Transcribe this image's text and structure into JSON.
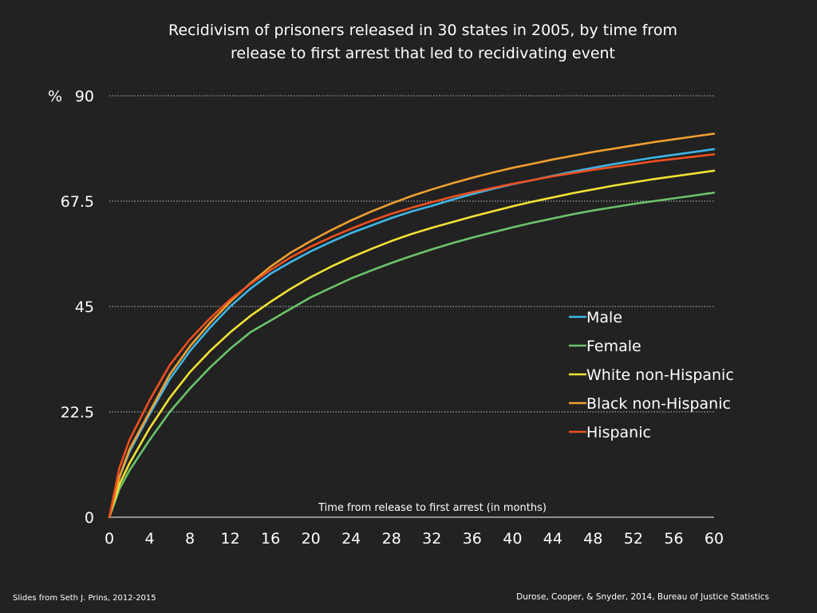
{
  "slide": {
    "title_line1": "Recidivism of prisoners released in 30 states in 2005, by time from",
    "title_line2": "release to first arrest that led to recidivating event",
    "footer_left": "Slides from Seth J. Prins, 2012-2015",
    "footer_right": "Durose, Cooper, & Snyder,  2014, Bureau of Justice Statistics"
  },
  "chart_data": {
    "type": "line",
    "title": "Recidivism of prisoners released in 30 states in 2005, by time from release to first arrest that led to recidivating event",
    "xlabel": "Time from release to first arrest (in months)",
    "ylabel": "%",
    "xlim": [
      0,
      60
    ],
    "ylim": [
      0,
      90
    ],
    "x_ticks": [
      0,
      4,
      8,
      12,
      16,
      20,
      24,
      28,
      32,
      36,
      40,
      44,
      48,
      52,
      56,
      60
    ],
    "y_ticks": [
      0,
      22.5,
      45,
      67.5,
      90
    ],
    "y_tick_labels": [
      "0",
      "22.5",
      "45",
      "67.5",
      "90"
    ],
    "y_unit_label": "%",
    "grid": "horizontal dotted",
    "legend_position": "right, middle",
    "x": [
      0,
      1,
      2,
      4,
      6,
      8,
      10,
      12,
      14,
      16,
      18,
      20,
      22,
      24,
      26,
      28,
      30,
      32,
      34,
      36,
      38,
      40,
      42,
      44,
      46,
      48,
      50,
      52,
      54,
      56,
      58,
      60
    ],
    "series": [
      {
        "name": "Male",
        "color": "#3fb5e6",
        "values": [
          0,
          8.5,
          14,
          22,
          29.5,
          35.5,
          40.5,
          45,
          48.8,
          52,
          54.5,
          56.8,
          58.8,
          60.7,
          62.3,
          63.9,
          65.3,
          66.5,
          67.8,
          69,
          70.1,
          71.1,
          72,
          72.9,
          73.8,
          74.6,
          75.4,
          76.1,
          76.8,
          77.4,
          78,
          78.6
        ]
      },
      {
        "name": "Female",
        "color": "#6cc46a",
        "values": [
          0,
          6,
          10,
          16.5,
          22.5,
          27.5,
          32,
          36,
          39.5,
          42,
          44.5,
          47,
          49,
          51,
          52.7,
          54.3,
          55.8,
          57.2,
          58.5,
          59.7,
          60.8,
          61.9,
          62.9,
          63.8,
          64.7,
          65.5,
          66.2,
          66.9,
          67.5,
          68.1,
          68.7,
          69.3
        ]
      },
      {
        "name": "White non-Hispanic",
        "color": "#f2e233",
        "values": [
          0,
          7,
          11.5,
          19,
          25.5,
          31,
          35.5,
          39.5,
          43,
          46,
          48.8,
          51.3,
          53.5,
          55.5,
          57.3,
          59,
          60.5,
          61.8,
          63,
          64.2,
          65.3,
          66.4,
          67.4,
          68.3,
          69.2,
          70,
          70.8,
          71.5,
          72.2,
          72.8,
          73.4,
          74
        ]
      },
      {
        "name": "Black non-Hispanic",
        "color": "#f0a030",
        "values": [
          0,
          8.5,
          14.5,
          22.5,
          30.5,
          36.5,
          41.5,
          46,
          50,
          53.5,
          56.5,
          59,
          61.3,
          63.4,
          65.3,
          67,
          68.6,
          70,
          71.3,
          72.5,
          73.6,
          74.6,
          75.5,
          76.4,
          77.2,
          78,
          78.7,
          79.4,
          80.1,
          80.7,
          81.3,
          81.9
        ]
      },
      {
        "name": "Hispanic",
        "color": "#ee5020",
        "values": [
          0,
          10.5,
          16.5,
          25,
          32.5,
          38,
          42.5,
          46.5,
          49.8,
          52.8,
          55.5,
          57.8,
          59.8,
          61.6,
          63.3,
          64.8,
          66.1,
          67.3,
          68.4,
          69.4,
          70.3,
          71.2,
          72,
          72.8,
          73.5,
          74.2,
          74.8,
          75.4,
          76,
          76.5,
          77,
          77.5
        ]
      }
    ]
  }
}
